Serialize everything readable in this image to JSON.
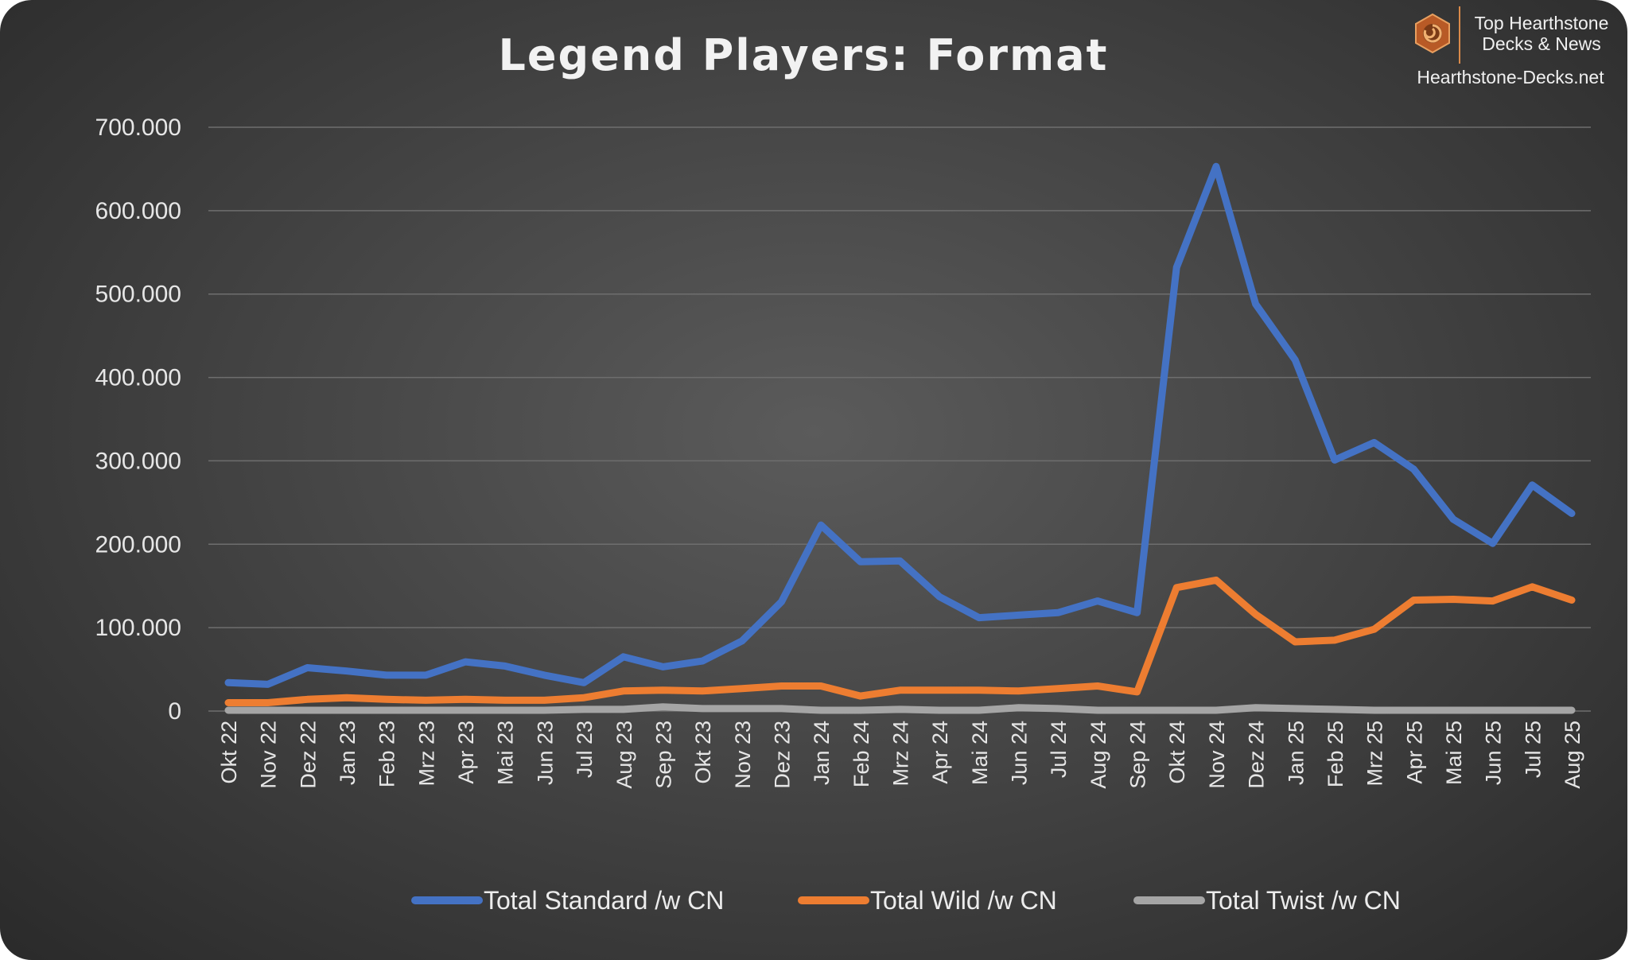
{
  "logo": {
    "line1": "Top Hearthstone",
    "line2": "Decks & News",
    "site": "Hearthstone-Decks.net"
  },
  "chart_data": {
    "type": "line",
    "title": "Legend Players: Format",
    "xlabel": "",
    "ylabel": "",
    "ylim": [
      0,
      700000
    ],
    "yticks": [
      0,
      100000,
      200000,
      300000,
      400000,
      500000,
      600000,
      700000
    ],
    "ytick_labels": [
      "0",
      "100.000",
      "200.000",
      "300.000",
      "400.000",
      "500.000",
      "600.000",
      "700.000"
    ],
    "grid": true,
    "legend_position": "bottom",
    "categories": [
      "Okt 22",
      "Nov 22",
      "Dez 22",
      "Jan 23",
      "Feb 23",
      "Mrz 23",
      "Apr 23",
      "Mai 23",
      "Jun 23",
      "Jul 23",
      "Aug 23",
      "Sep 23",
      "Okt 23",
      "Nov 23",
      "Dez 23",
      "Jan 24",
      "Feb 24",
      "Mrz 24",
      "Apr 24",
      "Mai 24",
      "Jun 24",
      "Jul 24",
      "Aug 24",
      "Sep 24",
      "Okt 24",
      "Nov 24",
      "Dez 24",
      "Jan 25",
      "Feb 25",
      "Mrz 25",
      "Apr 25",
      "Mai 25",
      "Jun 25",
      "Jul 25",
      "Aug 25"
    ],
    "series": [
      {
        "name": "Total Standard /w CN",
        "color": "#4472c4",
        "values": [
          34000,
          32000,
          52000,
          48000,
          43000,
          43000,
          59000,
          54000,
          43000,
          34000,
          65000,
          53000,
          60000,
          84000,
          131000,
          223000,
          179000,
          180000,
          137000,
          112000,
          115000,
          118000,
          132000,
          118000,
          532000,
          653000,
          488000,
          421000,
          301000,
          322000,
          290000,
          230000,
          201000,
          271000,
          237000
        ]
      },
      {
        "name": "Total Wild /w CN",
        "color": "#ed7d31",
        "values": [
          10000,
          10000,
          14000,
          16000,
          14000,
          13000,
          14000,
          13000,
          13000,
          16000,
          24000,
          25000,
          24000,
          27000,
          30000,
          30000,
          18000,
          25000,
          25000,
          25000,
          24000,
          27000,
          30000,
          23000,
          148000,
          157000,
          116000,
          83000,
          85000,
          98000,
          133000,
          134000,
          132000,
          149000,
          133000
        ]
      },
      {
        "name": "Total Twist /w CN",
        "color": "#a5a5a5",
        "values": [
          1000,
          1000,
          1000,
          1000,
          1000,
          1000,
          1000,
          1000,
          1000,
          2000,
          2000,
          5000,
          3000,
          3000,
          3000,
          1000,
          1000,
          2000,
          1000,
          1000,
          4000,
          3000,
          1000,
          1000,
          1000,
          1000,
          4000,
          3000,
          2000,
          1000,
          1000,
          1000,
          1000,
          1000,
          1000
        ]
      }
    ]
  }
}
